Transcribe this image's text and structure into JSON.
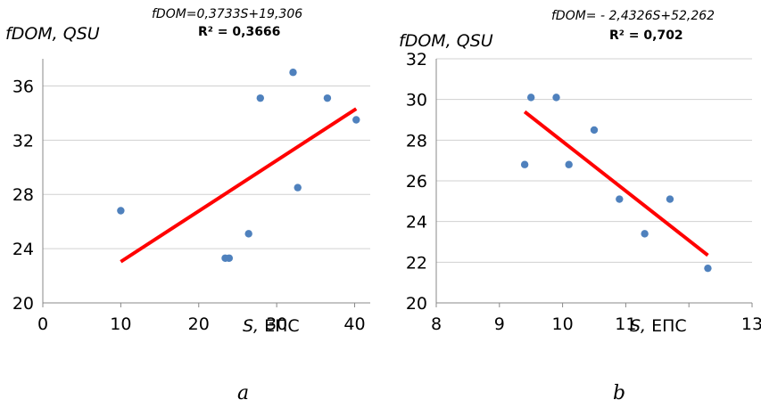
{
  "chart_data": [
    {
      "type": "scatter",
      "panel_label": "a",
      "ylabel": "fDOM, QSU",
      "xlabel_symbol": "S,",
      "xlabel_unit": "ЕПС",
      "equation": "fDOM=0,3733S+19,306",
      "r2": "R² = 0,3666",
      "xlim": [
        0,
        42
      ],
      "ylim": [
        20,
        38
      ],
      "xticks": [
        0,
        10,
        20,
        30,
        40
      ],
      "yticks": [
        20,
        24,
        28,
        32,
        36
      ],
      "grid": true,
      "points": [
        {
          "x": 10,
          "y": 26.8
        },
        {
          "x": 23.4,
          "y": 23.3
        },
        {
          "x": 23.9,
          "y": 23.3
        },
        {
          "x": 26.4,
          "y": 25.1
        },
        {
          "x": 27.9,
          "y": 35.1
        },
        {
          "x": 32.1,
          "y": 37.0
        },
        {
          "x": 32.7,
          "y": 28.5
        },
        {
          "x": 36.5,
          "y": 35.1
        },
        {
          "x": 40.2,
          "y": 33.5
        }
      ],
      "trend": {
        "slope": 0.3733,
        "intercept": 19.306,
        "x_range": [
          10,
          40.2
        ],
        "color": "#ff0000"
      },
      "point_color": "#4f81bd"
    },
    {
      "type": "scatter",
      "panel_label": "b",
      "ylabel": "fDOM, QSU",
      "xlabel_symbol": "S,",
      "xlabel_unit": "ЕПС",
      "equation": "fDOM= - 2,4326S+52,262",
      "r2": "R² = 0,702",
      "xlim": [
        8,
        13
      ],
      "ylim": [
        20,
        32
      ],
      "xticks": [
        8,
        9,
        10,
        11,
        13
      ],
      "yticks": [
        20,
        22,
        24,
        26,
        28,
        30,
        32
      ],
      "grid": true,
      "points": [
        {
          "x": 9.4,
          "y": 26.8
        },
        {
          "x": 9.5,
          "y": 30.1
        },
        {
          "x": 9.9,
          "y": 30.1
        },
        {
          "x": 10.1,
          "y": 26.8
        },
        {
          "x": 10.5,
          "y": 28.5
        },
        {
          "x": 10.9,
          "y": 25.1
        },
        {
          "x": 11.3,
          "y": 23.4
        },
        {
          "x": 11.7,
          "y": 25.1
        },
        {
          "x": 12.3,
          "y": 21.7
        }
      ],
      "trend": {
        "slope": -2.4326,
        "intercept": 52.262,
        "x_range": [
          9.4,
          12.3
        ],
        "color": "#ff0000"
      },
      "point_color": "#4f81bd"
    }
  ]
}
